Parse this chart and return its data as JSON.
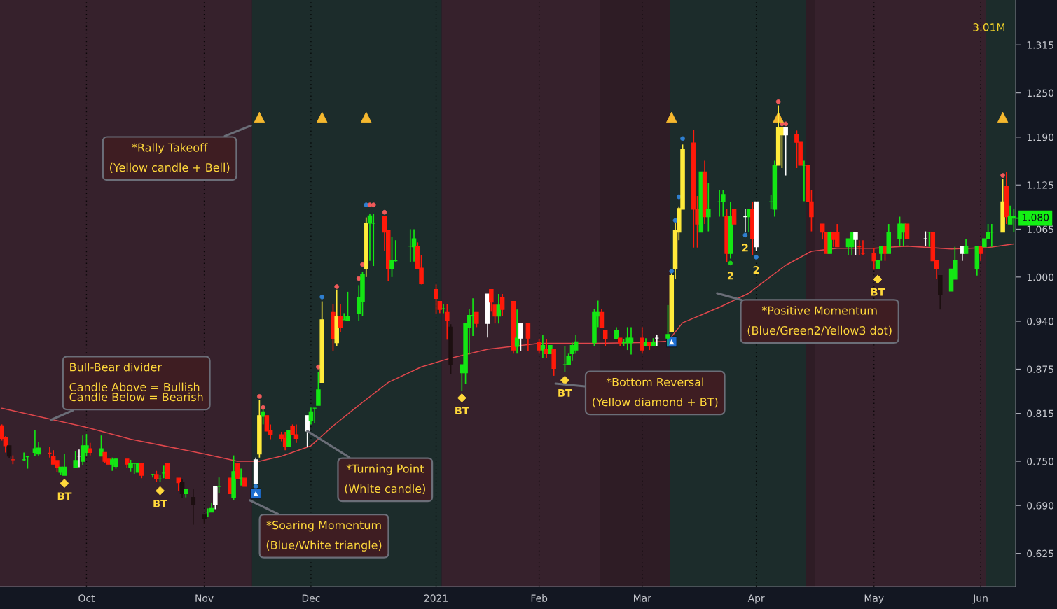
{
  "chart_data": {
    "type": "candlestick",
    "x": [
      "2020-09-08",
      "2020-09-09",
      "2020-09-10",
      "2020-09-11",
      "2020-09-14",
      "2020-09-15",
      "2020-09-17",
      "2020-09-18",
      "2020-09-21",
      "2020-09-22",
      "2020-09-23",
      "2020-09-24",
      "2020-09-25",
      "2020-09-28",
      "2020-09-29",
      "2020-09-30",
      "2020-10-01",
      "2020-10-02",
      "2020-10-05",
      "2020-10-06",
      "2020-10-07",
      "2020-10-08",
      "2020-10-09",
      "2020-10-12",
      "2020-10-13",
      "2020-10-14",
      "2020-10-15",
      "2020-10-16",
      "2020-10-19",
      "2020-10-20",
      "2020-10-21",
      "2020-10-22",
      "2020-10-23",
      "2020-10-26",
      "2020-10-27",
      "2020-10-28",
      "2020-10-30",
      "2020-11-02",
      "2020-11-03",
      "2020-11-04",
      "2020-11-05",
      "2020-11-06",
      "2020-11-09",
      "2020-11-10",
      "2020-11-11",
      "2020-11-12",
      "2020-11-13",
      "2020-11-16",
      "2020-11-17",
      "2020-11-18",
      "2020-11-19",
      "2020-11-20",
      "2020-11-23",
      "2020-11-24",
      "2020-11-25",
      "2020-11-26",
      "2020-11-27",
      "2020-11-30",
      "2020-12-01",
      "2020-12-02",
      "2020-12-03",
      "2020-12-04",
      "2020-12-07",
      "2020-12-08",
      "2020-12-09",
      "2020-12-10",
      "2020-12-11",
      "2020-12-14",
      "2020-12-15",
      "2020-12-16",
      "2020-12-17",
      "2020-12-18",
      "2020-12-21",
      "2020-12-22",
      "2020-12-23",
      "2020-12-24",
      "2020-12-28",
      "2020-12-29",
      "2020-12-30",
      "2020-12-31",
      "2021-01-04",
      "2021-01-05",
      "2021-01-06",
      "2021-01-07",
      "2021-01-08",
      "2021-01-11",
      "2021-01-12",
      "2021-01-13",
      "2021-01-14",
      "2021-01-15",
      "2021-01-18",
      "2021-01-19",
      "2021-01-20",
      "2021-01-21",
      "2021-01-22",
      "2021-01-25",
      "2021-01-26",
      "2021-01-27",
      "2021-01-29",
      "2021-02-01",
      "2021-02-02",
      "2021-02-03",
      "2021-02-04",
      "2021-02-05",
      "2021-02-08",
      "2021-02-09",
      "2021-02-10",
      "2021-02-11",
      "2021-02-16",
      "2021-02-17",
      "2021-02-18",
      "2021-02-19",
      "2021-02-22",
      "2021-02-23",
      "2021-02-24",
      "2021-02-25",
      "2021-02-26",
      "2021-03-01",
      "2021-03-02",
      "2021-03-03",
      "2021-03-04",
      "2021-03-05",
      "2021-03-08",
      "2021-03-09",
      "2021-03-10",
      "2021-03-11",
      "2021-03-12",
      "2021-03-15",
      "2021-03-16",
      "2021-03-17",
      "2021-03-18",
      "2021-03-19",
      "2021-03-22",
      "2021-03-23",
      "2021-03-24",
      "2021-03-25",
      "2021-03-26",
      "2021-03-29",
      "2021-03-30",
      "2021-03-31",
      "2021-04-01",
      "2021-04-05",
      "2021-04-06",
      "2021-04-07",
      "2021-04-08",
      "2021-04-09",
      "2021-04-12",
      "2021-04-13",
      "2021-04-14",
      "2021-04-15",
      "2021-04-16",
      "2021-04-19",
      "2021-04-20",
      "2021-04-21",
      "2021-04-22",
      "2021-04-23",
      "2021-04-26",
      "2021-04-27",
      "2021-04-28",
      "2021-04-29",
      "2021-04-30",
      "2021-05-03",
      "2021-05-04",
      "2021-05-05",
      "2021-05-06",
      "2021-05-07",
      "2021-05-10",
      "2021-05-11",
      "2021-05-12",
      "2021-05-17",
      "2021-05-18",
      "2021-05-19",
      "2021-05-20",
      "2021-05-21",
      "2021-05-24",
      "2021-05-25",
      "2021-05-27",
      "2021-05-28",
      "2021-05-31",
      "2021-06-01",
      "2021-06-02",
      "2021-06-03",
      "2021-06-04",
      "2021-06-07",
      "2021-06-08",
      "2021-06-09",
      "2021-06-10"
    ],
    "ohlc": [
      [
        0.798,
        0.8,
        0.778,
        0.781
      ],
      [
        0.782,
        0.784,
        0.762,
        0.771
      ],
      [
        0.771,
        0.771,
        0.754,
        0.757
      ],
      [
        0.752,
        0.758,
        0.746,
        0.752
      ],
      [
        0.752,
        0.762,
        0.75,
        0.752
      ],
      [
        0.756,
        0.757,
        0.74,
        0.756
      ],
      [
        0.762,
        0.792,
        0.757,
        0.767
      ],
      [
        0.76,
        0.776,
        0.757,
        0.768
      ],
      [
        0.761,
        0.77,
        0.755,
        0.761
      ],
      [
        0.757,
        0.765,
        0.746,
        0.746
      ],
      [
        0.751,
        0.751,
        0.735,
        0.742
      ],
      [
        0.735,
        0.742,
        0.731,
        0.742
      ],
      [
        0.731,
        0.76,
        0.731,
        0.742
      ],
      [
        0.742,
        0.764,
        0.742,
        0.751
      ],
      [
        0.757,
        0.766,
        0.742,
        0.757
      ],
      [
        0.75,
        0.785,
        0.745,
        0.771
      ],
      [
        0.762,
        0.787,
        0.757,
        0.771
      ],
      [
        0.767,
        0.775,
        0.758,
        0.762
      ],
      [
        0.757,
        0.785,
        0.757,
        0.767
      ],
      [
        0.762,
        0.762,
        0.748,
        0.75
      ],
      [
        0.753,
        0.753,
        0.746,
        0.746
      ],
      [
        0.746,
        0.755,
        0.737,
        0.752
      ],
      [
        0.743,
        0.754,
        0.74,
        0.753
      ],
      [
        0.753,
        0.753,
        0.741,
        0.746
      ],
      [
        0.742,
        0.752,
        0.736,
        0.747
      ],
      [
        0.747,
        0.747,
        0.733,
        0.747
      ],
      [
        0.735,
        0.747,
        0.735,
        0.747
      ],
      [
        0.747,
        0.747,
        0.727,
        0.731
      ],
      [
        0.732,
        0.733,
        0.728,
        0.732
      ],
      [
        0.732,
        0.737,
        0.722,
        0.726
      ],
      [
        0.726,
        0.732,
        0.722,
        0.726
      ],
      [
        0.734,
        0.744,
        0.727,
        0.734
      ],
      [
        0.747,
        0.747,
        0.726,
        0.726
      ],
      [
        0.727,
        0.727,
        0.71,
        0.721
      ],
      [
        0.721,
        0.725,
        0.7,
        0.706
      ],
      [
        0.706,
        0.712,
        0.701,
        0.712
      ],
      [
        0.701,
        0.712,
        0.664,
        0.691
      ],
      [
        0.677,
        0.677,
        0.665,
        0.672
      ],
      [
        0.681,
        0.686,
        0.674,
        0.681
      ],
      [
        0.681,
        0.694,
        0.681,
        0.686
      ],
      [
        0.691,
        0.716,
        0.685,
        0.716
      ],
      [
        0.716,
        0.728,
        0.707,
        0.716
      ],
      [
        0.727,
        0.727,
        0.706,
        0.706
      ],
      [
        0.701,
        0.758,
        0.697,
        0.736
      ],
      [
        0.747,
        0.747,
        0.726,
        0.726
      ],
      [
        0.727,
        0.74,
        0.717,
        0.727
      ],
      [
        0.727,
        0.727,
        0.716,
        0.716
      ],
      [
        0.72,
        0.755,
        0.72,
        0.752
      ],
      [
        0.76,
        0.833,
        0.755,
        0.812
      ],
      [
        0.811,
        0.82,
        0.8,
        0.817
      ],
      [
        0.812,
        0.812,
        0.791,
        0.791
      ],
      [
        0.792,
        0.8,
        0.78,
        0.786
      ],
      [
        0.786,
        0.79,
        0.777,
        0.781
      ],
      [
        0.781,
        0.79,
        0.765,
        0.77
      ],
      [
        0.77,
        0.792,
        0.77,
        0.792
      ],
      [
        0.797,
        0.8,
        0.786,
        0.786
      ],
      [
        0.786,
        0.8,
        0.775,
        0.781
      ],
      [
        0.791,
        0.812,
        0.77,
        0.812
      ],
      [
        0.805,
        0.823,
        0.8,
        0.817
      ],
      [
        0.822,
        0.822,
        0.802,
        0.822
      ],
      [
        0.826,
        0.871,
        0.826,
        0.847
      ],
      [
        0.857,
        0.967,
        0.857,
        0.942
      ],
      [
        0.952,
        0.963,
        0.9,
        0.916
      ],
      [
        0.911,
        0.983,
        0.906,
        0.947
      ],
      [
        0.947,
        0.963,
        0.925,
        0.931
      ],
      [
        0.942,
        0.951,
        0.942,
        0.942
      ],
      [
        0.941,
        0.98,
        0.941,
        0.947
      ],
      [
        0.951,
        0.989,
        0.941,
        0.972
      ],
      [
        0.967,
        1.007,
        0.947,
        1.003
      ],
      [
        1.011,
        1.081,
        1.0,
        1.073
      ],
      [
        1.073,
        1.086,
        1.022,
        1.083
      ],
      [
        1.073,
        1.086,
        1.015,
        1.073
      ],
      [
        1.082,
        1.082,
        1.035,
        1.061
      ],
      [
        1.063,
        1.063,
        0.995,
        1.011
      ],
      [
        1.011,
        1.054,
        1.0,
        1.022
      ],
      [
        1.022,
        1.05,
        1.021,
        1.022
      ],
      [
        1.042,
        1.065,
        1.02,
        1.042
      ],
      [
        1.041,
        1.065,
        1.021,
        1.052
      ],
      [
        1.042,
        1.047,
        1.011,
        1.011
      ],
      [
        1.012,
        1.03,
        0.99,
        0.991
      ],
      [
        0.983,
        0.99,
        0.95,
        0.971
      ],
      [
        0.967,
        0.967,
        0.951,
        0.956
      ],
      [
        0.957,
        0.963,
        0.951,
        0.957
      ],
      [
        0.952,
        0.963,
        0.915,
        0.941
      ],
      [
        0.932,
        0.936,
        0.868,
        0.881
      ],
      [
        0.87,
        0.881,
        0.846,
        0.881
      ],
      [
        0.87,
        0.937,
        0.855,
        0.937
      ],
      [
        0.932,
        0.957,
        0.895,
        0.948
      ],
      [
        0.948,
        0.971,
        0.92,
        0.948
      ],
      [
        0.952,
        0.952,
        0.932,
        0.937
      ],
      [
        0.937,
        0.977,
        0.918,
        0.977
      ],
      [
        0.983,
        0.983,
        0.953,
        0.966
      ],
      [
        0.962,
        0.962,
        0.937,
        0.947
      ],
      [
        0.947,
        0.977,
        0.937,
        0.962
      ],
      [
        0.972,
        0.977,
        0.947,
        0.956
      ],
      [
        0.967,
        0.967,
        0.896,
        0.901
      ],
      [
        0.906,
        0.956,
        0.896,
        0.917
      ],
      [
        0.917,
        0.937,
        0.9,
        0.937
      ],
      [
        0.937,
        0.937,
        0.9,
        0.917
      ],
      [
        0.911,
        0.916,
        0.896,
        0.901
      ],
      [
        0.901,
        0.922,
        0.89,
        0.907
      ],
      [
        0.902,
        0.916,
        0.89,
        0.896
      ],
      [
        0.896,
        0.907,
        0.896,
        0.907
      ],
      [
        0.902,
        0.902,
        0.866,
        0.876
      ],
      [
        0.881,
        0.906,
        0.871,
        0.881
      ],
      [
        0.881,
        0.896,
        0.881,
        0.892
      ],
      [
        0.896,
        0.911,
        0.886,
        0.907
      ],
      [
        0.901,
        0.922,
        0.896,
        0.912
      ],
      [
        0.911,
        0.957,
        0.906,
        0.952
      ],
      [
        0.947,
        0.968,
        0.932,
        0.952
      ],
      [
        0.952,
        0.957,
        0.932,
        0.932
      ],
      [
        0.927,
        0.927,
        0.906,
        0.916
      ],
      [
        0.916,
        0.932,
        0.916,
        0.927
      ],
      [
        0.917,
        0.917,
        0.906,
        0.911
      ],
      [
        0.911,
        0.916,
        0.906,
        0.911
      ],
      [
        0.911,
        0.932,
        0.901,
        0.917
      ],
      [
        0.911,
        0.932,
        0.895,
        0.917
      ],
      [
        0.917,
        0.932,
        0.896,
        0.901
      ],
      [
        0.907,
        0.917,
        0.907,
        0.911
      ],
      [
        0.911,
        0.911,
        0.901,
        0.907
      ],
      [
        0.907,
        0.917,
        0.907,
        0.911
      ],
      [
        0.917,
        0.922,
        0.906,
        0.917
      ],
      [
        0.917,
        0.962,
        0.907,
        0.922
      ],
      [
        0.926,
        1.005,
        0.926,
        1.002
      ],
      [
        1.011,
        1.073,
        0.997,
        1.063
      ],
      [
        1.061,
        1.096,
        1.05,
        1.093
      ],
      [
        1.092,
        1.18,
        1.092,
        1.173
      ],
      [
        1.182,
        1.2,
        1.04,
        1.092
      ],
      [
        1.092,
        1.11,
        1.04,
        1.072
      ],
      [
        1.061,
        1.143,
        1.061,
        1.143
      ],
      [
        1.143,
        1.158,
        1.072,
        1.082
      ],
      [
        1.082,
        1.128,
        1.062,
        1.092
      ],
      [
        1.102,
        1.118,
        1.082,
        1.102
      ],
      [
        1.102,
        1.118,
        1.082,
        1.112
      ],
      [
        1.082,
        1.092,
        1.02,
        1.032
      ],
      [
        1.032,
        1.102,
        1.025,
        1.082
      ],
      [
        1.092,
        1.092,
        1.072,
        1.072
      ],
      [
        1.082,
        1.092,
        1.061,
        1.082
      ],
      [
        1.082,
        1.092,
        1.061,
        1.092
      ],
      [
        1.092,
        1.102,
        1.03,
        1.052
      ],
      [
        1.041,
        1.102,
        1.035,
        1.102
      ],
      [
        1.102,
        1.112,
        1.092,
        1.102
      ],
      [
        1.092,
        1.158,
        1.082,
        1.152
      ],
      [
        1.152,
        1.233,
        1.152,
        1.203
      ],
      [
        1.193,
        1.203,
        1.148,
        1.203
      ],
      [
        1.193,
        1.203,
        1.138,
        1.203
      ],
      [
        1.193,
        1.199,
        1.148,
        1.183
      ],
      [
        1.183,
        1.183,
        1.152,
        1.152
      ],
      [
        1.152,
        1.158,
        1.103,
        1.152
      ],
      [
        1.152,
        1.152,
        1.102,
        1.102
      ],
      [
        1.102,
        1.118,
        1.062,
        1.082
      ],
      [
        1.072,
        1.072,
        1.051,
        1.061
      ],
      [
        1.061,
        1.061,
        1.032,
        1.032
      ],
      [
        1.032,
        1.061,
        1.032,
        1.061
      ],
      [
        1.061,
        1.061,
        1.041,
        1.051
      ],
      [
        1.061,
        1.072,
        1.041,
        1.041
      ],
      [
        1.041,
        1.052,
        1.03,
        1.052
      ],
      [
        1.041,
        1.061,
        1.03,
        1.061
      ],
      [
        1.051,
        1.061,
        1.03,
        1.061
      ],
      [
        1.041,
        1.05,
        1.03,
        1.041
      ],
      [
        1.032,
        1.05,
        1.03,
        1.032
      ],
      [
        1.032,
        1.04,
        1.01,
        1.022
      ],
      [
        1.011,
        1.022,
        1.011,
        1.022
      ],
      [
        1.032,
        1.041,
        1.022,
        1.041
      ],
      [
        1.041,
        1.041,
        1.022,
        1.032
      ],
      [
        1.032,
        1.072,
        1.032,
        1.061
      ],
      [
        1.052,
        1.082,
        1.042,
        1.072
      ],
      [
        1.061,
        1.072,
        1.042,
        1.072
      ],
      [
        1.072,
        1.072,
        1.052,
        1.052
      ],
      [
        1.052,
        1.062,
        1.042,
        1.052
      ],
      [
        1.061,
        1.061,
        1.041,
        1.061
      ],
      [
        1.061,
        1.061,
        1.022,
        1.022
      ],
      [
        1.022,
        1.022,
        0.997,
        1.011
      ],
      [
        1.002,
        1.002,
        0.956,
        0.976
      ],
      [
        0.981,
        1.011,
        0.981,
        1.011
      ],
      [
        0.997,
        1.041,
        0.997,
        1.022
      ],
      [
        1.032,
        1.041,
        1.022,
        1.041
      ],
      [
        1.032,
        1.052,
        1.032,
        1.041
      ],
      [
        1.011,
        1.041,
        1.002,
        1.041
      ],
      [
        1.041,
        1.041,
        1.022,
        1.032
      ],
      [
        1.041,
        1.052,
        1.041,
        1.052
      ],
      [
        1.052,
        1.072,
        1.052,
        1.061
      ],
      [
        1.061,
        1.072,
        1.041,
        1.061
      ],
      [
        1.061,
        1.133,
        1.061,
        1.102
      ],
      [
        1.123,
        1.143,
        1.072,
        1.082
      ],
      [
        1.072,
        1.097,
        1.072,
        1.082
      ],
      [
        1.082,
        1.092,
        1.061,
        1.08
      ]
    ],
    "colors": [
      "#ff1a0a",
      "#ff1a0a",
      "#1c0f10",
      "#ff1a0a",
      "#14e614",
      "#14e614",
      "#14e614",
      "#14e614",
      "#ff1a0a",
      "#ff1a0a",
      "#ff1a0a",
      "#14e614",
      "#14e614",
      "#14e614",
      "#ffffff",
      "#14e614",
      "#14e614",
      "#ff1a0a",
      "#14e614",
      "#ff1a0a",
      "#ff1a0a",
      "#14e614",
      "#14e614",
      "#ff1a0a",
      "#14e614",
      "#14e614",
      "#14e614",
      "#ff1a0a",
      "#14e614",
      "#ff1a0a",
      "#14e614",
      "#14e614",
      "#ff1a0a",
      "#ff1a0a",
      "#1c0f10",
      "#14e614",
      "#1c0f10",
      "#1c0f10",
      "#14e614",
      "#14e614",
      "#ffffff",
      "#14e614",
      "#ff1a0a",
      "#14e614",
      "#ff1a0a",
      "#14e614",
      "#ff1a0a",
      "#ffffff",
      "#ffeb3b",
      "#14e614",
      "#ff1a0a",
      "#ff1a0a",
      "#ff1a0a",
      "#ff1a0a",
      "#14e614",
      "#ff1a0a",
      "#ff1a0a",
      "#ffffff",
      "#14e614",
      "#14e614",
      "#14e614",
      "#ffeb3b",
      "#ff1a0a",
      "#ffeb3b",
      "#ff1a0a",
      "#14e614",
      "#14e614",
      "#14e614",
      "#14e614",
      "#ffeb3b",
      "#14e614",
      "#14e614",
      "#ff1a0a",
      "#ff1a0a",
      "#14e614",
      "#14e614",
      "#14e614",
      "#14e614",
      "#ff1a0a",
      "#ff1a0a",
      "#ff1a0a",
      "#ff1a0a",
      "#14e614",
      "#ff1a0a",
      "#1c0f10",
      "#14e614",
      "#14e614",
      "#14e614",
      "#14e614",
      "#ff1a0a",
      "#ffffff",
      "#ff1a0a",
      "#ff1a0a",
      "#14e614",
      "#ff1a0a",
      "#ff1a0a",
      "#14e614",
      "#ffffff",
      "#ff1a0a",
      "#ff1a0a",
      "#14e614",
      "#ff1a0a",
      "#14e614",
      "#ff1a0a",
      "#14e614",
      "#14e614",
      "#14e614",
      "#14e614",
      "#14e614",
      "#14e614",
      "#ff1a0a",
      "#ff1a0a",
      "#14e614",
      "#ff1a0a",
      "#14e614",
      "#14e614",
      "#14e614",
      "#ff1a0a",
      "#14e614",
      "#ff1a0a",
      "#14e614",
      "#ffffff",
      "#14e614",
      "#ffeb3b",
      "#ffeb3b",
      "#ffeb3b",
      "#ffeb3b",
      "#ff1a0a",
      "#ff1a0a",
      "#14e614",
      "#ff1a0a",
      "#14e614",
      "#14e614",
      "#14e614",
      "#ff1a0a",
      "#14e614",
      "#ff1a0a",
      "#ffffff",
      "#14e614",
      "#ff1a0a",
      "#ffffff",
      "#14e614",
      "#14e614",
      "#ffeb3b",
      "#ffeb3b",
      "#ffffff",
      "#ff1a0a",
      "#ff1a0a",
      "#14e614",
      "#ff1a0a",
      "#ff1a0a",
      "#ff1a0a",
      "#ff1a0a",
      "#14e614",
      "#ff1a0a",
      "#ff1a0a",
      "#14e614",
      "#14e614",
      "#ffffff",
      "#ff1a0a",
      "#ff1a0a",
      "#ff1a0a",
      "#14e614",
      "#14e614",
      "#ff1a0a",
      "#14e614",
      "#14e614",
      "#14e614",
      "#ff1a0a",
      "#ffffff",
      "#14e614",
      "#ff1a0a",
      "#ff1a0a",
      "#1c0f10",
      "#14e614",
      "#14e614",
      "#ffffff",
      "#14e614",
      "#14e614",
      "#ff1a0a",
      "#14e614",
      "#14e614",
      "#14e614",
      "#ffeb3b",
      "#ff1a0a",
      "#14e614",
      "#14e614"
    ],
    "series": [
      {
        "type": "line",
        "color": "#e0474c",
        "x": [
          "2020-09-08",
          "2020-10-01",
          "2020-10-13",
          "2020-11-02",
          "2020-11-11",
          "2020-11-17",
          "2020-11-23",
          "2020-12-01",
          "2020-12-07",
          "2020-12-14",
          "2020-12-22",
          "2020-12-31",
          "2021-01-08",
          "2021-01-18",
          "2021-02-01",
          "2021-02-16",
          "2021-03-01",
          "2021-03-08",
          "2021-03-12",
          "2021-03-22",
          "2021-03-30",
          "2021-04-01",
          "2021-04-09",
          "2021-04-16",
          "2021-04-23",
          "2021-05-03",
          "2021-05-12",
          "2021-05-24",
          "2021-06-03",
          "2021-06-10"
        ],
        "values": [
          0.822,
          0.796,
          0.78,
          0.76,
          0.75,
          0.75,
          0.757,
          0.771,
          0.798,
          0.826,
          0.857,
          0.878,
          0.89,
          0.902,
          0.91,
          0.91,
          0.911,
          0.913,
          0.938,
          0.959,
          0.978,
          0.986,
          1.016,
          1.035,
          1.039,
          1.039,
          1.042,
          1.038,
          1.04,
          1.045
        ]
      },
      {
        "type": "scatter",
        "marker": "circle",
        "x": [
          "2020-11-16",
          "2020-11-17",
          "2020-11-18",
          "2020-12-03",
          "2020-12-04",
          "2020-12-08",
          "2020-12-14",
          "2020-12-15",
          "2020-12-16",
          "2020-12-17",
          "2020-12-18",
          "2020-12-21",
          "2021-03-09",
          "2021-03-10",
          "2021-03-11",
          "2021-03-12",
          "2021-03-25",
          "2021-03-29",
          "2021-04-01",
          "2021-04-07",
          "2021-04-08",
          "2021-04-09",
          "2021-06-07"
        ],
        "values": [
          0.716,
          0.838,
          0.823,
          0.878,
          0.973,
          0.987,
          0.998,
          1.017,
          1.098,
          1.098,
          1.098,
          1.088,
          1.008,
          1.077,
          1.109,
          1.188,
          1.019,
          1.057,
          1.027,
          1.238,
          1.208,
          1.208,
          1.138
        ],
        "colors": [
          "#2f7fd0",
          "#f05a5a",
          "#f05a5a",
          "#f05a5a",
          "#2f7fd0",
          "#f05a5a",
          "#f05a5a",
          "#f05a5a",
          "#2f7fd0",
          "#f05a5a",
          "#f05a5a",
          "#f05a5a",
          "#2f7fd0",
          "#2f7fd0",
          "#2f7fd0",
          "#2f7fd0",
          "#19d019",
          "#2f7fd0",
          "#2f7fd0",
          "#f05a5a",
          "#f05a5a",
          "#f05a5a",
          "#f05a5a"
        ]
      },
      {
        "type": "scatter",
        "marker": "diamond",
        "color": "#ffd83b",
        "x": [
          "2020-09-25",
          "2020-10-21",
          "2021-01-11",
          "2021-02-08",
          "2021-05-04"
        ],
        "values": [
          0.72,
          0.71,
          0.836,
          0.86,
          0.997
        ]
      },
      {
        "type": "scatter",
        "marker": "square",
        "color": "#1f6fd1",
        "x": [
          "2020-11-16",
          "2021-03-09"
        ],
        "values": [
          0.706,
          0.912
        ]
      },
      {
        "type": "scatter",
        "marker": "triangle",
        "color": "#f5b82e",
        "x": [
          "2020-11-17",
          "2020-12-04",
          "2020-12-16",
          "2021-03-09",
          "2021-04-07",
          "2021-06-07"
        ],
        "values": [
          1.217,
          1.217,
          1.217,
          1.217,
          1.217,
          1.217
        ]
      }
    ],
    "bands": [
      {
        "axis": "x",
        "from": "2020-09-07T12:00",
        "to": "2020-11-15",
        "color": "#36212c"
      },
      {
        "axis": "x",
        "from": "2020-11-15",
        "to": "2021-01-05T12:00",
        "color": "#1c2c2b"
      },
      {
        "axis": "x",
        "from": "2021-01-05T12:00",
        "to": "2021-02-17T12:00",
        "color": "#36212c"
      },
      {
        "axis": "x",
        "from": "2021-02-17T12:00",
        "to": "2021-03-08T12:00",
        "color": "#2e1c25"
      },
      {
        "axis": "x",
        "from": "2021-03-08T12:00",
        "to": "2021-04-14T12:00",
        "color": "#1c2c2b"
      },
      {
        "axis": "x",
        "from": "2021-04-14T12:00",
        "to": "2021-04-17",
        "color": "#2e1c25"
      },
      {
        "axis": "x",
        "from": "2021-04-17",
        "to": "2021-06-02T12:00",
        "color": "#36212c"
      },
      {
        "axis": "x",
        "from": "2021-06-02T12:00",
        "to": "2021-06-10T12:00",
        "color": "#1c2c2b"
      }
    ],
    "ref_lines": [
      {
        "axis": "y",
        "value": 1.08,
        "label": "1.080",
        "color": "#14f014"
      }
    ],
    "annotations": [
      "*Rally Takeoff\n\n(Yellow candle + Bell)",
      "Bull-Bear divider\n\nCandle Above = Bullish\nCandle Below = Bearish",
      {
        "text": "*Turning Point\n\n(White candle)",
        "x": "2020-11-30",
        "y": 0.791
      },
      "*Soaring Momentum\n\n(Blue/White triangle)",
      "*Bottom Reversal\n\n(Yellow diamond + BT)",
      "*Positive Momentum\n\n(Blue/Green2/Yellow3 dot)",
      "3.01M",
      {
        "text": "BT",
        "x": "2020-09-25",
        "y": 0.72
      },
      {
        "text": "BT",
        "x": "2020-10-21",
        "y": 0.71
      },
      {
        "text": "BT",
        "x": "2021-01-11",
        "y": 0.836
      },
      {
        "text": "BT",
        "x": "2021-02-08",
        "y": 0.86
      },
      {
        "text": "BT",
        "x": "2021-05-04",
        "y": 0.997
      },
      {
        "text": "2",
        "x": "2021-03-25",
        "y": 1.019
      },
      {
        "text": "2",
        "x": "2021-03-29",
        "y": 1.057
      },
      {
        "text": "2",
        "x": "2021-04-01",
        "y": 1.027
      }
    ],
    "xlim": [
      "2020-09-07T12:00",
      "2021-06-10T12:00"
    ],
    "xticks": [
      {
        "value": "2020-10-01",
        "label": "Oct"
      },
      {
        "value": "2020-11-02",
        "label": "Nov"
      },
      {
        "value": "2020-12-01",
        "label": "Dec"
      },
      {
        "value": "2021-01-04",
        "label": "2021"
      },
      {
        "value": "2021-02-01",
        "label": "Feb"
      },
      {
        "value": "2021-03-01",
        "label": "Mar"
      },
      {
        "value": "2021-04-01",
        "label": "Apr"
      },
      {
        "value": "2021-05-03",
        "label": "May"
      },
      {
        "value": "2021-06-01",
        "label": "Jun"
      }
    ],
    "ylim": [
      0.58,
      1.376
    ],
    "yticks": [
      0.625,
      {
        "value": 0.69,
        "label": "0.690"
      },
      {
        "value": 0.75,
        "label": "0.750"
      },
      0.815,
      0.875,
      {
        "value": 0.94,
        "label": "0.940"
      },
      {
        "value": 1.0,
        "label": "1.000"
      },
      1.065,
      1.125,
      {
        "value": 1.19,
        "label": "1.190"
      },
      {
        "value": 1.25,
        "label": "1.250"
      },
      1.315
    ],
    "grid": "x"
  }
}
